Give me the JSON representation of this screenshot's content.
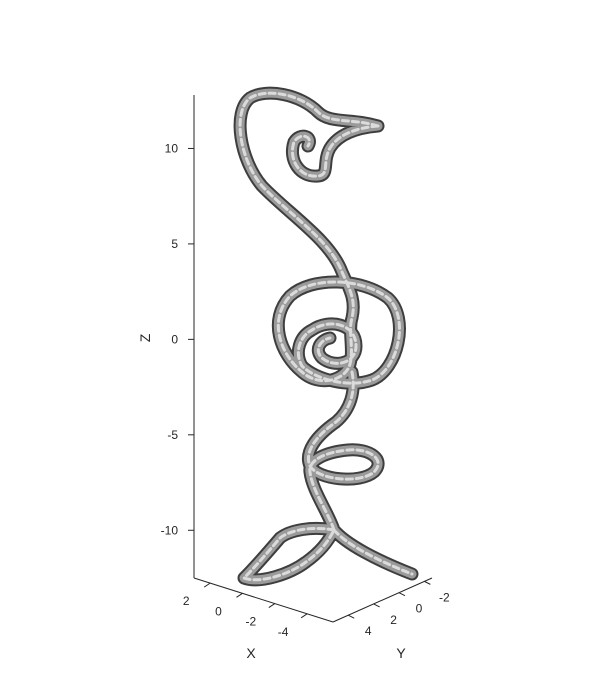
{
  "chart_data": {
    "type": "surface3d",
    "title": "",
    "xlabel": "X",
    "ylabel": "Y",
    "zlabel": "Z",
    "x_ticks": [
      2,
      0,
      -2,
      -4
    ],
    "y_ticks": [
      4,
      2,
      0,
      -2
    ],
    "z_ticks": [
      10,
      5,
      0,
      -5,
      -10
    ],
    "z_tick_labels": [
      "10",
      "5",
      "0",
      "-5",
      "-10"
    ],
    "zlim": [
      -12.5,
      12.8
    ],
    "surface_color": "#9a9a9a",
    "grid": false,
    "box": false
  }
}
